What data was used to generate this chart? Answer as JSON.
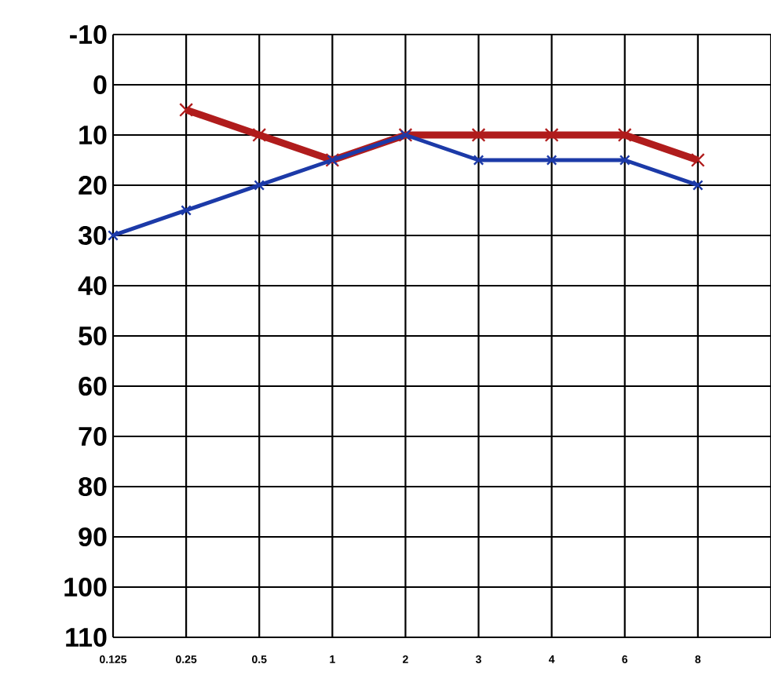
{
  "chart_data": {
    "type": "line",
    "categories": [
      "0.125",
      "0.25",
      "0.5",
      "1",
      "2",
      "3",
      "4",
      "6",
      "8"
    ],
    "series": [
      {
        "color": "#b01c1c",
        "values": [
          null,
          5,
          10,
          15,
          10,
          10,
          10,
          10,
          15
        ]
      },
      {
        "color": "#1c3aa8",
        "values": [
          30,
          25,
          20,
          15,
          10,
          15,
          15,
          15,
          20
        ]
      }
    ],
    "ylim": [
      110,
      -10
    ],
    "yticks": [
      -10,
      0,
      10,
      20,
      30,
      40,
      50,
      60,
      70,
      80,
      90,
      100,
      110
    ],
    "grid": true,
    "marker": "cross",
    "line_style": "solid"
  }
}
